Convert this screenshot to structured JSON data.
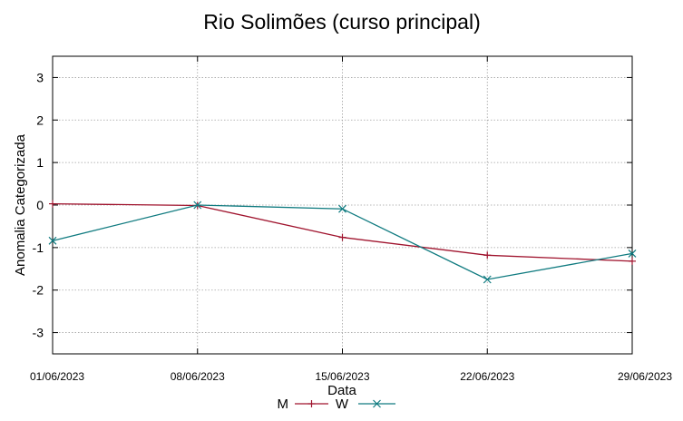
{
  "chart_data": {
    "type": "line",
    "title": "Rio Solimões (curso principal)",
    "xlabel": "Data",
    "ylabel": "Anomalia Categorizada",
    "x": [
      "01/06/2023",
      "08/06/2023",
      "15/06/2023",
      "22/06/2023",
      "29/06/2023"
    ],
    "ylim": [
      -3.5,
      3.5
    ],
    "yticks": [
      3,
      2,
      1,
      0,
      -1,
      -2,
      -3
    ],
    "grid": true,
    "legend_position": "bottom",
    "series": [
      {
        "name": "M",
        "color": "#a0142e",
        "marker": "plus",
        "values": [
          0.03,
          -0.01,
          -0.76,
          -1.18,
          -1.32
        ]
      },
      {
        "name": "W",
        "color": "#107b80",
        "marker": "cross",
        "values": [
          -0.84,
          0.0,
          -0.09,
          -1.75,
          -1.14
        ]
      }
    ]
  }
}
